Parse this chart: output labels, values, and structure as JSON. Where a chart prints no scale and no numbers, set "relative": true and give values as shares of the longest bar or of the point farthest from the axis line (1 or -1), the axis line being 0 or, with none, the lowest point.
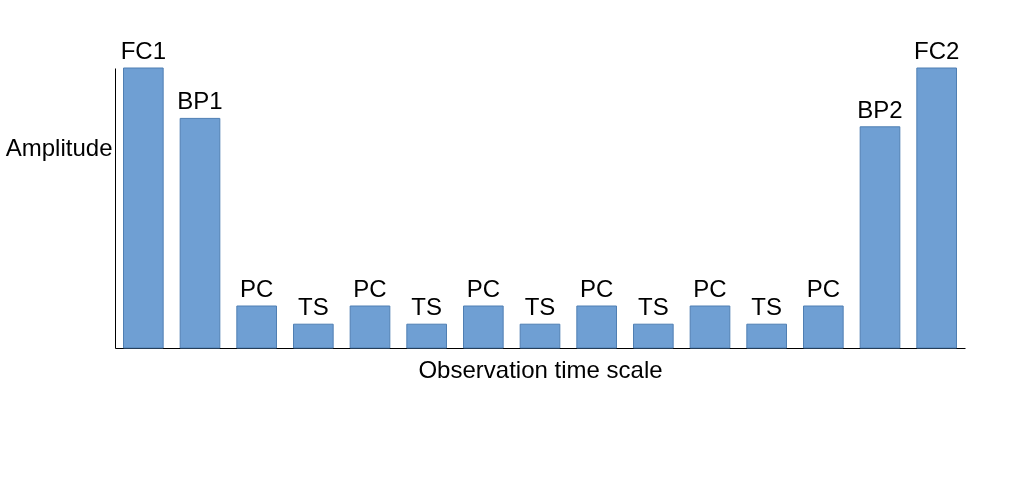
{
  "chart_data": {
    "type": "bar",
    "relative": true,
    "xlabel": "Observation time scale",
    "ylabel": "Amplitude",
    "categories": [
      "FC1",
      "BP1",
      "PC",
      "TS",
      "PC",
      "TS",
      "PC",
      "TS",
      "PC",
      "TS",
      "PC",
      "TS",
      "PC",
      "BP2",
      "FC2"
    ],
    "values": [
      1,
      0.82,
      0.15,
      0.085,
      0.15,
      0.085,
      0.15,
      0.085,
      0.15,
      0.085,
      0.15,
      0.085,
      0.15,
      0.79,
      1
    ],
    "color": "#6f9fd3"
  }
}
